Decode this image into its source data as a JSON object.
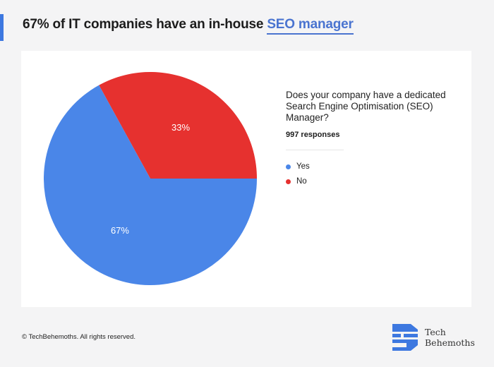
{
  "header": {
    "title_prefix": "67% of IT companies have an in-house ",
    "title_highlight": "SEO manager"
  },
  "chart_data": {
    "type": "pie",
    "title": "Does your company have a dedicated Search Engine Optimisation (SEO) Manager?",
    "subtitle": "997 responses",
    "legend_position": "right",
    "slices": [
      {
        "name": "Yes",
        "value": 67,
        "label": "67%",
        "color": "#4a86e8"
      },
      {
        "name": "No",
        "value": 33,
        "label": "33%",
        "color": "#e6312f"
      }
    ]
  },
  "footer": {
    "copyright": "© TechBehemoths. All rights reserved.",
    "logo_line1": "Tech",
    "logo_line2": "Behemoths"
  },
  "colors": {
    "accent": "#3d78e0",
    "background": "#f4f4f5"
  }
}
